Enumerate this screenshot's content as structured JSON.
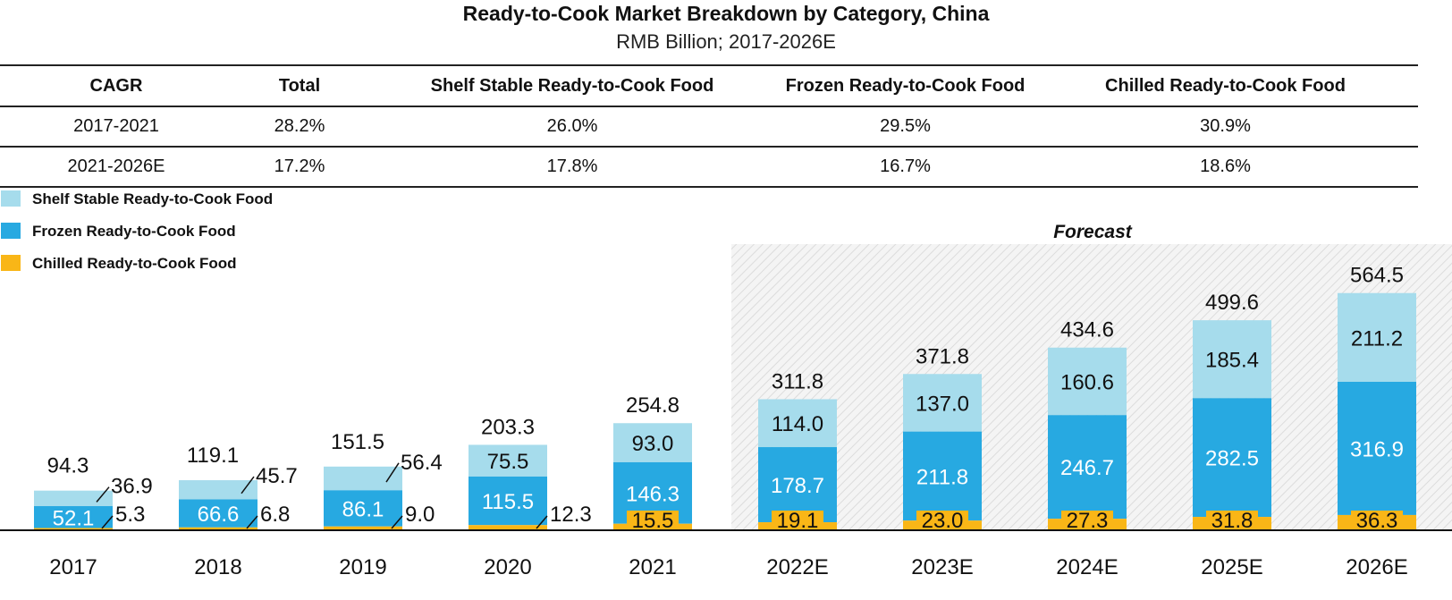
{
  "chart_data": {
    "type": "bar",
    "stacked": true,
    "title": "Ready-to-Cook Market Breakdown by Category, China",
    "subtitle": "RMB Billion; 2017-2026E",
    "categories": [
      "2017",
      "2018",
      "2019",
      "2020",
      "2021",
      "2022E",
      "2023E",
      "2024E",
      "2025E",
      "2026E"
    ],
    "totals": [
      94.3,
      119.1,
      151.5,
      203.3,
      254.8,
      311.8,
      371.8,
      434.6,
      499.6,
      564.5
    ],
    "series": [
      {
        "name": "Chilled Ready-to-Cook Food",
        "color": "#F9B617",
        "values": [
          5.3,
          6.8,
          9.0,
          12.3,
          15.5,
          19.1,
          23.0,
          27.3,
          31.8,
          36.3
        ]
      },
      {
        "name": "Frozen Ready-to-Cook Food",
        "color": "#27A9E1",
        "values": [
          52.1,
          66.6,
          86.1,
          115.5,
          146.3,
          178.7,
          211.8,
          246.7,
          282.5,
          316.9
        ]
      },
      {
        "name": "Shelf Stable Ready-to-Cook Food",
        "color": "#A6DCEC",
        "values": [
          36.9,
          45.7,
          56.4,
          75.5,
          93.0,
          114.0,
          137.0,
          160.6,
          185.4,
          211.2
        ]
      }
    ],
    "legend_order": [
      "Shelf Stable Ready-to-Cook Food",
      "Frozen Ready-to-Cook Food",
      "Chilled Ready-to-Cook Food"
    ],
    "legend_position": "top-left",
    "forecast_label": "Forecast",
    "forecast_start": "2022E",
    "grid": false
  },
  "cagr_table": {
    "headers": [
      "CAGR",
      "Total",
      "Shelf Stable Ready-to-Cook Food",
      "Frozen Ready-to-Cook Food",
      "Chilled Ready-to-Cook Food"
    ],
    "rows": [
      [
        "2017-2021",
        "28.2%",
        "26.0%",
        "29.5%",
        "30.9%"
      ],
      [
        "2021-2026E",
        "17.2%",
        "17.8%",
        "16.7%",
        "18.6%"
      ]
    ]
  }
}
